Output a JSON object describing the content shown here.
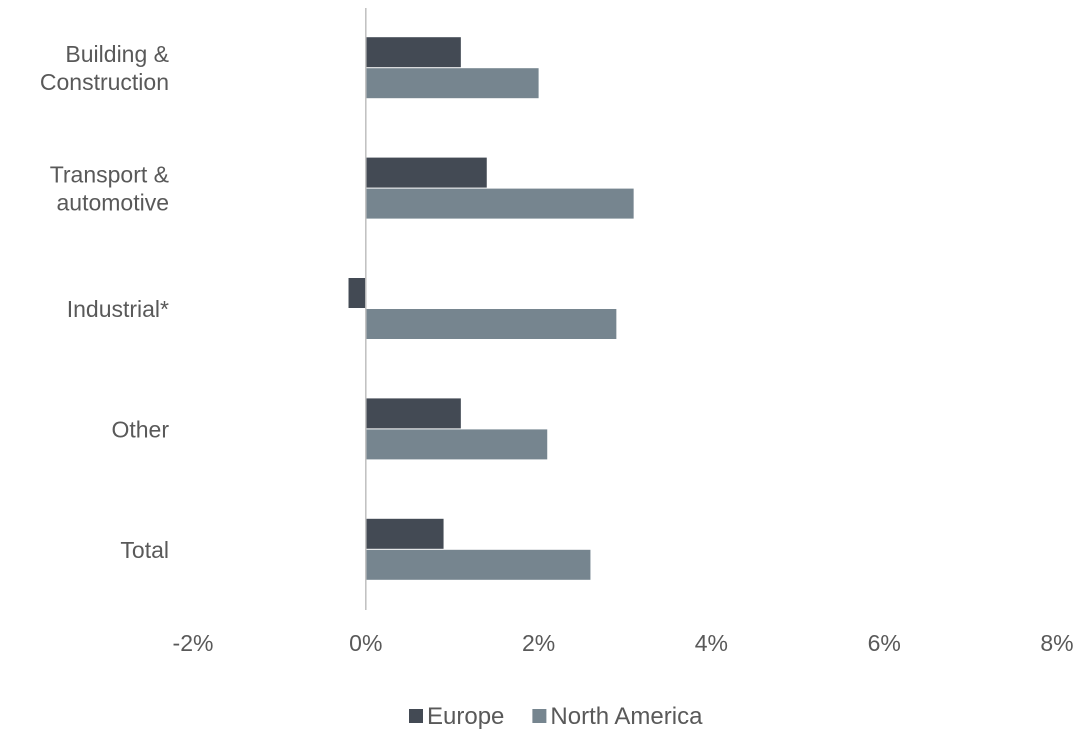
{
  "chart_data": {
    "type": "bar",
    "orientation": "horizontal",
    "title": "",
    "xlabel": "",
    "ylabel": "",
    "categories": [
      [
        "Building &",
        "Construction"
      ],
      [
        "Transport &",
        "automotive"
      ],
      [
        "Industrial*"
      ],
      [
        "Other"
      ],
      [
        "Total"
      ]
    ],
    "series": [
      {
        "name": "Europe",
        "color": "#434a54",
        "values": [
          1.1,
          1.4,
          -0.2,
          1.1,
          0.9
        ]
      },
      {
        "name": "North America",
        "color": "#76858f",
        "values": [
          2.0,
          3.1,
          2.9,
          2.1,
          2.6
        ]
      }
    ],
    "xlim": [
      -2,
      8
    ],
    "xticks": [
      -2,
      0,
      2,
      4,
      6,
      8
    ],
    "xtick_labels": [
      "-2%",
      "0%",
      "2%",
      "4%",
      "6%",
      "8%"
    ],
    "grid": false,
    "legend_position": "bottom",
    "axis_color": "#bfbfbf",
    "text_color": "#595959"
  }
}
